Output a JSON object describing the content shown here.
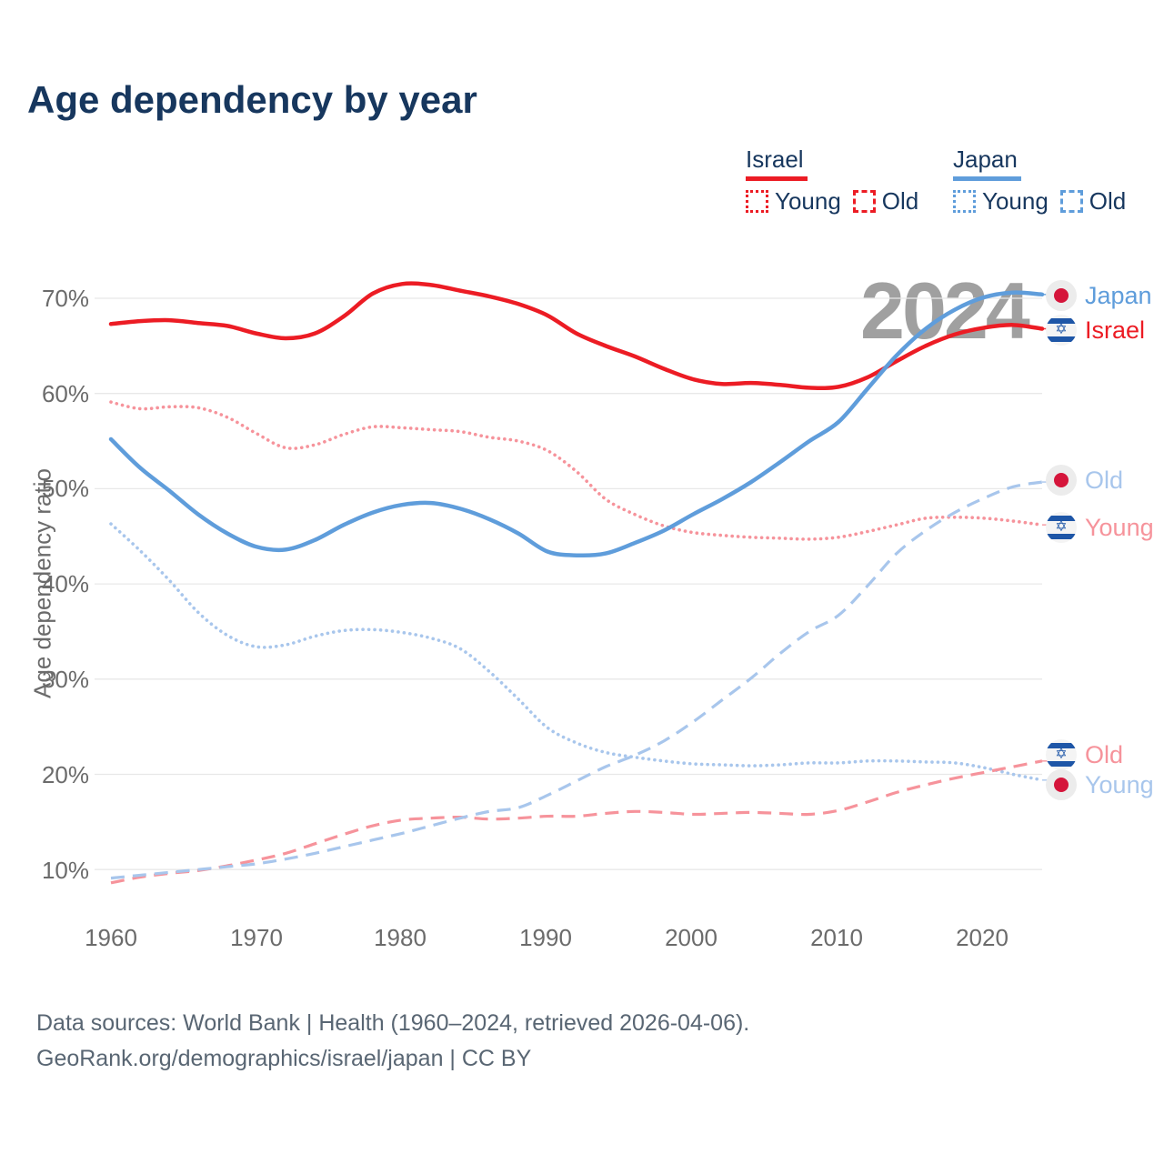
{
  "title": "Age dependency by year",
  "watermark": "2024",
  "icons": {
    "star_of_david": "✡",
    "japan_flag": "red-sun-disc"
  },
  "legend": {
    "israel": {
      "label": "Israel",
      "young_label": "Young",
      "old_label": "Old"
    },
    "japan": {
      "label": "Japan",
      "young_label": "Young",
      "old_label": "Old"
    }
  },
  "y_axis": {
    "title": "Age dependency ratio",
    "ticks": [
      "70%",
      "60%",
      "50%",
      "40%",
      "30%",
      "20%",
      "10%"
    ]
  },
  "x_axis": {
    "ticks": [
      "1960",
      "1970",
      "1980",
      "1990",
      "2000",
      "2010",
      "2020"
    ]
  },
  "right_labels": [
    {
      "text": "Japan",
      "flag": "japan",
      "series": "japan_total"
    },
    {
      "text": "Israel",
      "flag": "israel",
      "series": "israel_total"
    },
    {
      "text": "Old",
      "flag": "japan",
      "series": "japan_old"
    },
    {
      "text": "Young",
      "flag": "israel",
      "series": "israel_young"
    },
    {
      "text": "Old",
      "flag": "israel",
      "series": "israel_old"
    },
    {
      "text": "Young",
      "flag": "japan",
      "series": "japan_young"
    }
  ],
  "footer": {
    "line1": "Data sources: World Bank | Health (1960–2024, retrieved 2026-04-06).",
    "line2": "GeoRank.org/demographics/israel/japan | CC BY"
  },
  "colors": {
    "israel": "#ec1c24",
    "israel_light": "#f6939b",
    "japan": "#5f9ddb",
    "japan_light": "#a8c6ec",
    "title_text": "#17375e",
    "axis_text": "#6b6b6b",
    "grid": "#e8e8e8",
    "watermark": "#a0a0a0",
    "footer_text": "#596673"
  },
  "chart_data": {
    "type": "line",
    "title": "Age dependency by year",
    "xlabel": "",
    "ylabel": "Age dependency ratio",
    "ylim": [
      5,
      75
    ],
    "xlim": [
      1960,
      2024
    ],
    "grid": "horizontal",
    "x": [
      1960,
      1962,
      1964,
      1966,
      1968,
      1970,
      1972,
      1974,
      1976,
      1978,
      1980,
      1982,
      1984,
      1986,
      1988,
      1990,
      1992,
      1994,
      1996,
      1998,
      2000,
      2002,
      2004,
      2006,
      2008,
      2010,
      2012,
      2014,
      2016,
      2018,
      2020,
      2022,
      2024
    ],
    "series": [
      {
        "name": "Israel Young",
        "key": "israel_young",
        "country": "Israel",
        "measure": "Young",
        "color": "#f6939b",
        "line_style": "dotted",
        "values": [
          59.1,
          58.4,
          58.6,
          58.5,
          57.5,
          55.8,
          54.3,
          54.6,
          55.7,
          56.5,
          56.4,
          56.2,
          56.0,
          55.4,
          55.0,
          54.0,
          51.8,
          48.9,
          47.3,
          46.1,
          45.4,
          45.1,
          44.9,
          44.8,
          44.7,
          44.9,
          45.5,
          46.2,
          46.9,
          47.0,
          46.9,
          46.6,
          46.2
        ]
      },
      {
        "name": "Japan Young",
        "key": "japan_young",
        "country": "Japan",
        "measure": "Young",
        "color": "#a8c6ec",
        "line_style": "dotted",
        "values": [
          46.3,
          43.5,
          40.4,
          37.0,
          34.6,
          33.4,
          33.6,
          34.5,
          35.1,
          35.2,
          34.9,
          34.3,
          33.2,
          30.8,
          27.9,
          24.9,
          23.3,
          22.3,
          21.8,
          21.4,
          21.1,
          21.0,
          20.9,
          21.0,
          21.2,
          21.2,
          21.4,
          21.4,
          21.3,
          21.2,
          20.7,
          20.0,
          19.4
        ]
      },
      {
        "name": "Israel Old",
        "key": "israel_old",
        "country": "Israel",
        "measure": "Old",
        "color": "#f6939b",
        "line_style": "dashed",
        "values": [
          8.6,
          9.2,
          9.6,
          9.9,
          10.4,
          11.0,
          11.7,
          12.7,
          13.7,
          14.6,
          15.2,
          15.4,
          15.5,
          15.3,
          15.4,
          15.6,
          15.6,
          15.9,
          16.1,
          16.0,
          15.8,
          15.9,
          16.0,
          15.9,
          15.8,
          16.2,
          17.1,
          18.1,
          18.9,
          19.6,
          20.2,
          20.8,
          21.4
        ]
      },
      {
        "name": "Japan Old",
        "key": "japan_old",
        "country": "Japan",
        "measure": "Old",
        "color": "#a8c6ec",
        "line_style": "dashed",
        "values": [
          9.1,
          9.4,
          9.7,
          10.0,
          10.3,
          10.6,
          11.1,
          11.7,
          12.4,
          13.1,
          13.8,
          14.6,
          15.4,
          16.1,
          16.5,
          17.8,
          19.3,
          20.8,
          22.0,
          23.5,
          25.5,
          27.8,
          30.1,
          32.7,
          35.0,
          36.7,
          39.8,
          43.2,
          45.6,
          47.5,
          49.0,
          50.2,
          50.7
        ]
      },
      {
        "name": "Israel total",
        "key": "israel_total",
        "country": "Israel",
        "measure": "Total",
        "color": "#ec1c24",
        "line_style": "solid",
        "values": [
          67.3,
          67.6,
          67.7,
          67.4,
          67.1,
          66.3,
          65.8,
          66.3,
          68.1,
          70.5,
          71.5,
          71.4,
          70.8,
          70.2,
          69.4,
          68.2,
          66.3,
          65.0,
          63.9,
          62.6,
          61.5,
          61.0,
          61.1,
          60.9,
          60.6,
          60.7,
          61.7,
          63.4,
          65.0,
          66.2,
          66.9,
          67.2,
          66.8
        ]
      },
      {
        "name": "Japan total",
        "key": "japan_total",
        "country": "Japan",
        "measure": "Total",
        "color": "#5f9ddb",
        "line_style": "solid",
        "values": [
          55.2,
          52.2,
          49.8,
          47.3,
          45.3,
          43.9,
          43.6,
          44.6,
          46.2,
          47.5,
          48.3,
          48.5,
          47.9,
          46.8,
          45.3,
          43.4,
          43.0,
          43.2,
          44.3,
          45.6,
          47.3,
          48.9,
          50.7,
          52.8,
          55.0,
          57.0,
          60.5,
          64.0,
          66.8,
          68.8,
          70.1,
          70.6,
          70.4
        ]
      }
    ]
  }
}
